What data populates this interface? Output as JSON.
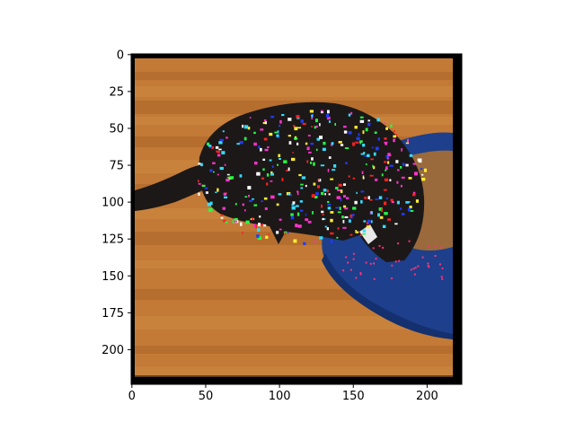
{
  "chart_data": {
    "type": "heatmap",
    "title": "",
    "xlabel": "",
    "ylabel": "",
    "xlim": [
      -0.5,
      223.5
    ],
    "ylim": [
      223.5,
      -0.5
    ],
    "xticks": [
      0,
      50,
      100,
      150,
      200
    ],
    "yticks": [
      0,
      25,
      50,
      75,
      100,
      125,
      150,
      175,
      200
    ],
    "xtick_labels": [
      "0",
      "50",
      "100",
      "150",
      "200"
    ],
    "ytick_labels": [
      "0",
      "25",
      "50",
      "75",
      "100",
      "125",
      "150",
      "175",
      "200"
    ],
    "grid": false,
    "image_content": "black cat with blue, green, red and white noise speckles lying on a wooden floor beside a blue cat scratcher bowl, surrounded by a black border"
  },
  "colors": {
    "frame_border": "#000000",
    "wood_light": "#d18b45",
    "wood_mid": "#c27a36",
    "wood_dark": "#a85f25",
    "cat": "#1c1818",
    "bowl": "#1d3f8c",
    "bowl_dark": "#14306e",
    "cardboard": "#9a6a3c",
    "noise": [
      "#1f3bff",
      "#22ff44",
      "#ff2222",
      "#ffffff",
      "#ff33cc",
      "#33ddff",
      "#ffee33"
    ]
  }
}
